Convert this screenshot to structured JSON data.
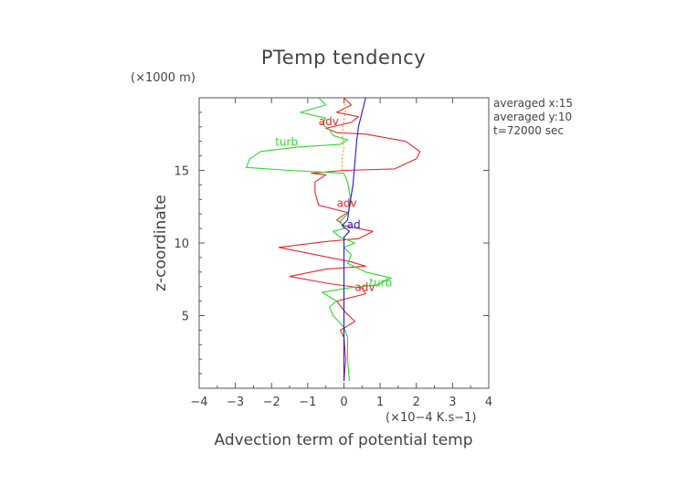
{
  "chart_data": {
    "type": "line",
    "title": "PTemp tendency",
    "xlabel": "Advection term of potential temp",
    "ylabel": "z-coordinate",
    "x_unit": "(×10−4 K.s−1)",
    "y_unit": "(×1000 m)",
    "xlim": [
      -4,
      4
    ],
    "ylim": [
      0,
      20
    ],
    "x_ticks": [
      -4,
      -3,
      -2,
      -1,
      0,
      1,
      2,
      3,
      4
    ],
    "x_tick_labels": [
      "−4",
      "−3",
      "−2",
      "−1",
      "0",
      "1",
      "2",
      "3",
      "4"
    ],
    "y_ticks": [
      5,
      10,
      15
    ],
    "y_tick_labels": [
      "5",
      "10",
      "15"
    ],
    "info_lines": [
      "averaged  x:15",
      "averaged  y:10",
      "t=72000 sec"
    ],
    "grid": false,
    "series": [
      {
        "name": "adv",
        "color": "#e8262e",
        "labels": [
          {
            "text": "adv",
            "x": -0.7,
            "y": 18.1
          },
          {
            "text": "adv",
            "x": -0.2,
            "y": 12.5
          },
          {
            "text": "adv",
            "x": 0.3,
            "y": 6.7
          }
        ],
        "points": [
          [
            0.0,
            0.5
          ],
          [
            0.05,
            2.0
          ],
          [
            0.0,
            3.5
          ],
          [
            -0.1,
            4.0
          ],
          [
            0.3,
            4.6
          ],
          [
            0.05,
            5.2
          ],
          [
            -0.2,
            6.0
          ],
          [
            0.6,
            6.5
          ],
          [
            0.5,
            6.9
          ],
          [
            -0.4,
            7.2
          ],
          [
            -1.5,
            7.7
          ],
          [
            -0.5,
            8.2
          ],
          [
            0.6,
            8.4
          ],
          [
            0.2,
            8.7
          ],
          [
            -0.8,
            9.2
          ],
          [
            -1.8,
            9.7
          ],
          [
            -0.5,
            10.1
          ],
          [
            0.4,
            10.3
          ],
          [
            0.8,
            10.8
          ],
          [
            0.0,
            11.2
          ],
          [
            -0.2,
            11.6
          ],
          [
            0.1,
            12.1
          ],
          [
            -0.7,
            12.6
          ],
          [
            -0.8,
            13.5
          ],
          [
            -0.8,
            14.2
          ],
          [
            -0.5,
            14.7
          ],
          [
            -0.9,
            14.8
          ],
          [
            0.0,
            15.0
          ],
          [
            1.4,
            15.1
          ],
          [
            2.0,
            15.8
          ],
          [
            2.1,
            16.3
          ],
          [
            1.7,
            17.0
          ],
          [
            0.6,
            17.5
          ],
          [
            -0.2,
            17.6
          ],
          [
            -0.5,
            17.9
          ],
          [
            0.2,
            18.3
          ],
          [
            0.4,
            18.7
          ],
          [
            -0.2,
            19.0
          ],
          [
            0.2,
            19.5
          ],
          [
            0.0,
            20.0
          ]
        ]
      },
      {
        "name": "turb",
        "color": "#2fd62f",
        "labels": [
          {
            "text": "turb",
            "x": -1.9,
            "y": 16.7
          },
          {
            "text": "turb",
            "x": 0.7,
            "y": 7.0
          }
        ],
        "points": [
          [
            0.15,
            0.5
          ],
          [
            0.1,
            2.0
          ],
          [
            0.1,
            3.5
          ],
          [
            0.0,
            4.2
          ],
          [
            -0.3,
            5.0
          ],
          [
            -0.4,
            5.6
          ],
          [
            -0.2,
            6.0
          ],
          [
            -0.6,
            6.6
          ],
          [
            0.1,
            6.9
          ],
          [
            0.9,
            7.1
          ],
          [
            1.3,
            7.6
          ],
          [
            0.6,
            8.0
          ],
          [
            0.1,
            8.6
          ],
          [
            0.2,
            9.2
          ],
          [
            0.0,
            9.7
          ],
          [
            0.3,
            10.0
          ],
          [
            -0.1,
            10.4
          ],
          [
            -0.3,
            10.8
          ],
          [
            0.0,
            11.0
          ],
          [
            -0.1,
            11.5
          ],
          [
            0.1,
            12.0
          ],
          [
            0.2,
            12.8
          ],
          [
            0.15,
            13.5
          ],
          [
            0.1,
            14.2
          ],
          [
            0.0,
            14.8
          ],
          [
            -1.5,
            15.0
          ],
          [
            -2.7,
            15.2
          ],
          [
            -2.6,
            15.8
          ],
          [
            -2.3,
            16.3
          ],
          [
            -1.3,
            16.6
          ],
          [
            -0.1,
            16.8
          ],
          [
            0.1,
            17.1
          ],
          [
            -0.3,
            17.4
          ],
          [
            -0.4,
            17.8
          ],
          [
            -0.6,
            18.2
          ],
          [
            -0.5,
            18.6
          ],
          [
            -1.2,
            19.0
          ],
          [
            -0.5,
            19.5
          ],
          [
            -0.7,
            20.0
          ]
        ]
      },
      {
        "name": "blue",
        "color": "#1a1acc",
        "labels": [
          {
            "text": "ad",
            "x": 0.08,
            "y": 11.0
          }
        ],
        "points": [
          [
            0.0,
            0.5
          ],
          [
            0.0,
            3.0
          ],
          [
            0.0,
            6.0
          ],
          [
            0.0,
            9.0
          ],
          [
            0.0,
            10.4
          ],
          [
            0.15,
            10.8
          ],
          [
            -0.05,
            11.2
          ],
          [
            0.1,
            11.6
          ],
          [
            0.15,
            12.5
          ],
          [
            0.25,
            14.0
          ],
          [
            0.3,
            15.5
          ],
          [
            0.35,
            17.0
          ],
          [
            0.4,
            18.0
          ],
          [
            0.5,
            19.0
          ],
          [
            0.6,
            20.0
          ]
        ]
      },
      {
        "name": "orange",
        "color": "#e89a2a",
        "dashed": true,
        "labels": [],
        "points": [
          [
            -0.05,
            15.0
          ],
          [
            -0.05,
            16.0
          ],
          [
            0.0,
            16.5
          ],
          [
            -0.05,
            17.5
          ],
          [
            0.0,
            18.5
          ],
          [
            0.05,
            19.2
          ],
          [
            0.0,
            20.0
          ]
        ]
      }
    ]
  }
}
